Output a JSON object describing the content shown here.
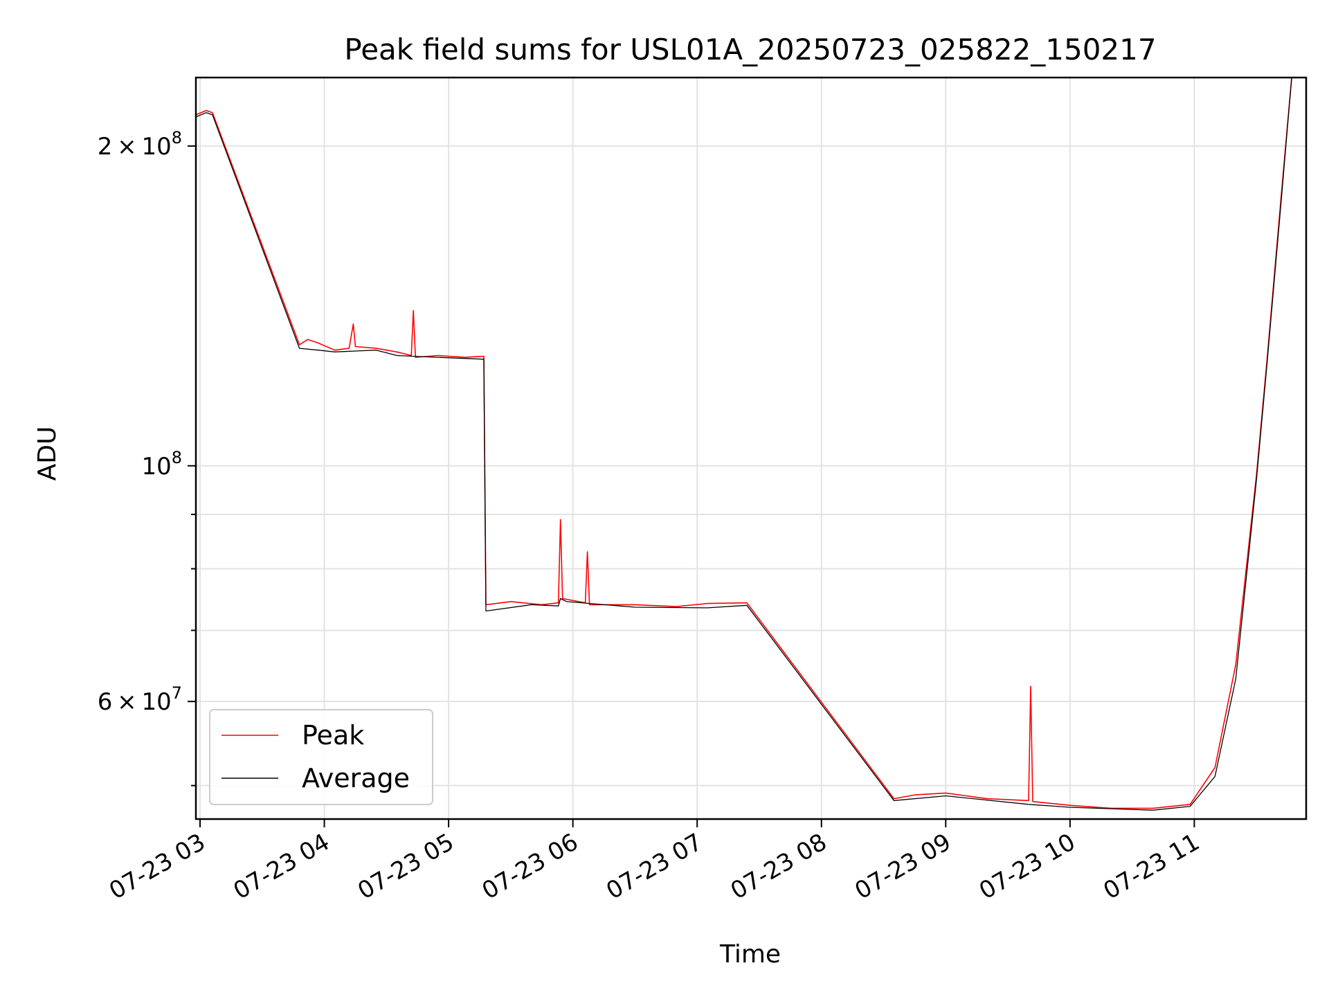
{
  "chart_data": {
    "type": "line",
    "title": "Peak field sums for USL01A_20250723_025822_150217",
    "xlabel": "Time",
    "ylabel": "ADU",
    "yscale": "log",
    "grid": true,
    "legend_position": "lower-left",
    "xlim": [
      "2025-07-23 02:58",
      "2025-07-23 11:54"
    ],
    "ylim": [
      46500000,
      232000000
    ],
    "x_ticks": [
      {
        "label": "07-23 03",
        "t": "2025-07-23 03:00"
      },
      {
        "label": "07-23 04",
        "t": "2025-07-23 04:00"
      },
      {
        "label": "07-23 05",
        "t": "2025-07-23 05:00"
      },
      {
        "label": "07-23 06",
        "t": "2025-07-23 06:00"
      },
      {
        "label": "07-23 07",
        "t": "2025-07-23 07:00"
      },
      {
        "label": "07-23 08",
        "t": "2025-07-23 08:00"
      },
      {
        "label": "07-23 09",
        "t": "2025-07-23 09:00"
      },
      {
        "label": "07-23 10",
        "t": "2025-07-23 10:00"
      },
      {
        "label": "07-23 11",
        "t": "2025-07-23 11:00"
      }
    ],
    "y_ticks_major": [
      {
        "value": 200000000,
        "mantissa": "2",
        "exponent": "8"
      },
      {
        "value": 100000000,
        "mantissa": "",
        "exponent": "8"
      },
      {
        "value": 60000000,
        "mantissa": "6",
        "exponent": "7"
      }
    ],
    "y_ticks_minor": [
      50000000,
      70000000,
      80000000,
      90000000
    ],
    "series": [
      {
        "name": "Peak",
        "color": "#ff0000",
        "points": [
          [
            "2025-07-23 02:58",
            214000000
          ],
          [
            "2025-07-23 03:03",
            216000000
          ],
          [
            "2025-07-23 03:06",
            215000000
          ],
          [
            "2025-07-23 03:48",
            130000000
          ],
          [
            "2025-07-23 03:52",
            131500000
          ],
          [
            "2025-07-23 03:57",
            130500000
          ],
          [
            "2025-07-23 04:05",
            128500000
          ],
          [
            "2025-07-23 04:12",
            129000000
          ],
          [
            "2025-07-23 04:14",
            136000000
          ],
          [
            "2025-07-23 04:15",
            129500000
          ],
          [
            "2025-07-23 04:25",
            129000000
          ],
          [
            "2025-07-23 04:35",
            128000000
          ],
          [
            "2025-07-23 04:42",
            127000000
          ],
          [
            "2025-07-23 04:43",
            140000000
          ],
          [
            "2025-07-23 04:44",
            126500000
          ],
          [
            "2025-07-23 04:55",
            127000000
          ],
          [
            "2025-07-23 05:08",
            126500000
          ],
          [
            "2025-07-23 05:17",
            126800000
          ],
          [
            "2025-07-23 05:18",
            74000000
          ],
          [
            "2025-07-23 05:30",
            74500000
          ],
          [
            "2025-07-23 05:45",
            74000000
          ],
          [
            "2025-07-23 05:53",
            74300000
          ],
          [
            "2025-07-23 05:54",
            89000000
          ],
          [
            "2025-07-23 05:55",
            75000000
          ],
          [
            "2025-07-23 06:06",
            74300000
          ],
          [
            "2025-07-23 06:07",
            83000000
          ],
          [
            "2025-07-23 06:08",
            74000000
          ],
          [
            "2025-07-23 06:30",
            74000000
          ],
          [
            "2025-07-23 06:50",
            73700000
          ],
          [
            "2025-07-23 07:05",
            74200000
          ],
          [
            "2025-07-23 07:24",
            74300000
          ],
          [
            "2025-07-23 08:35",
            48600000
          ],
          [
            "2025-07-23 08:45",
            49000000
          ],
          [
            "2025-07-23 09:00",
            49200000
          ],
          [
            "2025-07-23 09:20",
            48600000
          ],
          [
            "2025-07-23 09:40",
            48400000
          ],
          [
            "2025-07-23 09:41",
            62000000
          ],
          [
            "2025-07-23 09:42",
            48300000
          ],
          [
            "2025-07-23 10:00",
            47900000
          ],
          [
            "2025-07-23 10:20",
            47600000
          ],
          [
            "2025-07-23 10:40",
            47600000
          ],
          [
            "2025-07-23 10:58",
            48000000
          ],
          [
            "2025-07-23 11:10",
            52000000
          ],
          [
            "2025-07-23 11:20",
            65000000
          ],
          [
            "2025-07-23 11:30",
            98000000
          ],
          [
            "2025-07-23 11:35",
            125000000
          ],
          [
            "2025-07-23 11:42",
            180000000
          ],
          [
            "2025-07-23 11:47",
            232000000
          ]
        ]
      },
      {
        "name": "Average",
        "color": "#000000",
        "points": [
          [
            "2025-07-23 02:58",
            213000000
          ],
          [
            "2025-07-23 03:03",
            215000000
          ],
          [
            "2025-07-23 03:06",
            214000000
          ],
          [
            "2025-07-23 03:48",
            129000000
          ],
          [
            "2025-07-23 03:57",
            128500000
          ],
          [
            "2025-07-23 04:05",
            128000000
          ],
          [
            "2025-07-23 04:25",
            128500000
          ],
          [
            "2025-07-23 04:35",
            127000000
          ],
          [
            "2025-07-23 04:55",
            126500000
          ],
          [
            "2025-07-23 05:17",
            126000000
          ],
          [
            "2025-07-23 05:18",
            73000000
          ],
          [
            "2025-07-23 05:40",
            74000000
          ],
          [
            "2025-07-23 05:53",
            73800000
          ],
          [
            "2025-07-23 05:54",
            75000000
          ],
          [
            "2025-07-23 05:57",
            74500000
          ],
          [
            "2025-07-23 06:30",
            73600000
          ],
          [
            "2025-07-23 07:05",
            73500000
          ],
          [
            "2025-07-23 07:24",
            73900000
          ],
          [
            "2025-07-23 08:35",
            48400000
          ],
          [
            "2025-07-23 09:00",
            48900000
          ],
          [
            "2025-07-23 09:40",
            48000000
          ],
          [
            "2025-07-23 10:00",
            47700000
          ],
          [
            "2025-07-23 10:40",
            47400000
          ],
          [
            "2025-07-23 10:58",
            47800000
          ],
          [
            "2025-07-23 11:10",
            51000000
          ],
          [
            "2025-07-23 11:20",
            63000000
          ],
          [
            "2025-07-23 11:30",
            97000000
          ],
          [
            "2025-07-23 11:35",
            124000000
          ],
          [
            "2025-07-23 11:42",
            178000000
          ],
          [
            "2025-07-23 11:47",
            232000000
          ]
        ]
      }
    ]
  }
}
